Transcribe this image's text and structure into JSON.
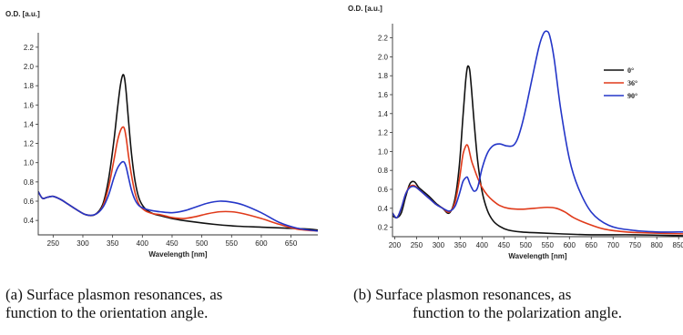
{
  "chart_data": [
    {
      "type": "line",
      "ylabel": "O.D. [a.u.]",
      "xlabel": "Wavelength [nm]",
      "xlim": [
        225,
        695
      ],
      "ylim": [
        0.25,
        2.35
      ],
      "xticks": [
        250,
        300,
        350,
        400,
        450,
        500,
        550,
        600,
        650
      ],
      "yticks": [
        0.4,
        0.6,
        0.8,
        1.0,
        1.2,
        1.4,
        1.6,
        1.8,
        2.0,
        2.2
      ],
      "ytick_labels": [
        "0.4",
        "0.6",
        "0.8",
        "1.0",
        "1.2",
        "1.4",
        "1.6",
        "1.8",
        "2.0",
        "2.2"
      ],
      "grid": false,
      "series": [
        {
          "color": "#111111",
          "x": [
            225,
            232,
            240,
            250,
            262,
            275,
            290,
            305,
            320,
            333,
            343,
            352,
            358,
            363,
            367,
            370,
            373,
            377,
            382,
            388,
            395,
            405,
            418,
            430,
            450,
            480,
            520,
            560,
            600,
            640,
            680,
            695
          ],
          "y": [
            0.7,
            0.63,
            0.64,
            0.65,
            0.62,
            0.57,
            0.51,
            0.46,
            0.46,
            0.56,
            0.82,
            1.22,
            1.55,
            1.8,
            1.91,
            1.88,
            1.72,
            1.42,
            1.08,
            0.8,
            0.62,
            0.52,
            0.47,
            0.45,
            0.42,
            0.39,
            0.36,
            0.34,
            0.33,
            0.32,
            0.31,
            0.3
          ]
        },
        {
          "color": "#e03a1a",
          "x": [
            225,
            232,
            240,
            250,
            262,
            275,
            290,
            305,
            320,
            333,
            343,
            352,
            358,
            363,
            367,
            370,
            373,
            377,
            382,
            388,
            395,
            405,
            418,
            430,
            450,
            470,
            490,
            510,
            530,
            550,
            570,
            600,
            630,
            660,
            695
          ],
          "y": [
            0.7,
            0.63,
            0.64,
            0.65,
            0.62,
            0.57,
            0.51,
            0.46,
            0.46,
            0.54,
            0.74,
            1.02,
            1.22,
            1.33,
            1.37,
            1.35,
            1.25,
            1.06,
            0.86,
            0.68,
            0.56,
            0.5,
            0.47,
            0.46,
            0.43,
            0.42,
            0.44,
            0.47,
            0.49,
            0.49,
            0.47,
            0.42,
            0.36,
            0.31,
            0.29
          ]
        },
        {
          "color": "#2436c8",
          "x": [
            225,
            232,
            240,
            250,
            262,
            275,
            290,
            305,
            320,
            333,
            343,
            352,
            358,
            363,
            367,
            370,
            373,
            377,
            382,
            388,
            395,
            405,
            418,
            430,
            450,
            470,
            490,
            510,
            530,
            550,
            570,
            600,
            630,
            660,
            695
          ],
          "y": [
            0.7,
            0.63,
            0.64,
            0.65,
            0.62,
            0.57,
            0.51,
            0.46,
            0.46,
            0.53,
            0.66,
            0.84,
            0.94,
            0.99,
            1.01,
            1.0,
            0.95,
            0.84,
            0.71,
            0.61,
            0.55,
            0.52,
            0.5,
            0.49,
            0.48,
            0.5,
            0.54,
            0.58,
            0.6,
            0.59,
            0.56,
            0.48,
            0.38,
            0.32,
            0.29
          ]
        }
      ]
    },
    {
      "type": "line",
      "ylabel": "O.D. [a.u.]",
      "xlabel": "Wavelength [nm]",
      "xlim": [
        195,
        860
      ],
      "ylim": [
        0.1,
        2.35
      ],
      "xticks": [
        200,
        250,
        300,
        350,
        400,
        450,
        500,
        550,
        600,
        650,
        700,
        750,
        800,
        850
      ],
      "yticks": [
        0.2,
        0.4,
        0.6,
        0.8,
        1.0,
        1.2,
        1.4,
        1.6,
        1.8,
        2.0,
        2.2
      ],
      "ytick_labels": [
        "0.2",
        "0.4",
        "0.6",
        "0.8",
        "1.0",
        "1.2",
        "1.4",
        "1.6",
        "1.8",
        "2.0",
        "2.2"
      ],
      "grid": false,
      "legend": {
        "position": "top-right",
        "entries": [
          "0°",
          "36°",
          "90°"
        ]
      },
      "series": [
        {
          "name": "0°",
          "color": "#111111",
          "x": [
            195,
            205,
            215,
            225,
            235,
            245,
            255,
            265,
            280,
            295,
            310,
            325,
            338,
            348,
            356,
            362,
            366,
            369,
            372,
            376,
            382,
            390,
            400,
            412,
            425,
            440,
            460,
            490,
            530,
            580,
            650,
            750,
            860
          ],
          "y": [
            0.32,
            0.3,
            0.35,
            0.52,
            0.66,
            0.68,
            0.62,
            0.58,
            0.52,
            0.45,
            0.4,
            0.35,
            0.5,
            0.85,
            1.35,
            1.72,
            1.88,
            1.9,
            1.85,
            1.65,
            1.3,
            0.9,
            0.58,
            0.38,
            0.27,
            0.21,
            0.17,
            0.15,
            0.14,
            0.13,
            0.12,
            0.12,
            0.11
          ]
        },
        {
          "name": "36°",
          "color": "#e03a1a",
          "x": [
            195,
            205,
            215,
            225,
            235,
            245,
            255,
            265,
            280,
            295,
            310,
            325,
            338,
            348,
            356,
            362,
            366,
            369,
            372,
            376,
            382,
            390,
            400,
            412,
            425,
            440,
            460,
            490,
            520,
            550,
            570,
            590,
            610,
            640,
            680,
            730,
            780,
            860
          ],
          "y": [
            0.35,
            0.3,
            0.4,
            0.55,
            0.63,
            0.64,
            0.6,
            0.56,
            0.5,
            0.44,
            0.4,
            0.36,
            0.46,
            0.7,
            0.96,
            1.05,
            1.07,
            1.04,
            0.98,
            0.9,
            0.82,
            0.72,
            0.62,
            0.54,
            0.48,
            0.43,
            0.4,
            0.39,
            0.4,
            0.41,
            0.4,
            0.36,
            0.3,
            0.24,
            0.18,
            0.15,
            0.14,
            0.13
          ]
        },
        {
          "name": "90°",
          "color": "#2436c8",
          "x": [
            195,
            205,
            215,
            225,
            235,
            245,
            255,
            265,
            280,
            295,
            310,
            325,
            338,
            348,
            356,
            362,
            366,
            369,
            372,
            376,
            382,
            390,
            400,
            412,
            425,
            440,
            455,
            470,
            480,
            490,
            500,
            515,
            530,
            540,
            548,
            555,
            565,
            580,
            600,
            620,
            650,
            690,
            740,
            800,
            860
          ],
          "y": [
            0.35,
            0.3,
            0.4,
            0.55,
            0.62,
            0.63,
            0.6,
            0.56,
            0.5,
            0.44,
            0.4,
            0.37,
            0.42,
            0.55,
            0.68,
            0.72,
            0.73,
            0.7,
            0.66,
            0.62,
            0.58,
            0.62,
            0.82,
            0.98,
            1.06,
            1.08,
            1.06,
            1.06,
            1.12,
            1.26,
            1.45,
            1.78,
            2.1,
            2.24,
            2.27,
            2.22,
            1.98,
            1.45,
            0.92,
            0.62,
            0.36,
            0.22,
            0.17,
            0.15,
            0.15
          ]
        }
      ]
    }
  ],
  "captions": {
    "a_line1": "(a) Surface plasmon resonances, as",
    "a_line2": "function to the orientation angle.",
    "b_line1": "(b) Surface plasmon resonances, as",
    "b_line2": "function to the polarization angle."
  }
}
